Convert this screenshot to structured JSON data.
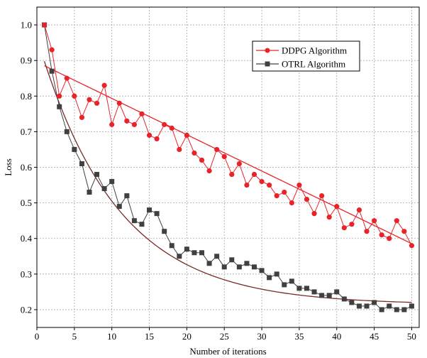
{
  "chart_data": {
    "type": "line",
    "xlabel": "Number of iterations",
    "ylabel": "Loss",
    "xlim": [
      0,
      51
    ],
    "ylim": [
      0.15,
      1.05
    ],
    "xticks": [
      0,
      5,
      10,
      15,
      20,
      25,
      30,
      35,
      40,
      45,
      50
    ],
    "yticks": [
      0.2,
      0.3,
      0.4,
      0.5,
      0.6,
      0.7,
      0.8,
      0.9,
      1.0
    ],
    "ytick_labels": [
      "0.2",
      "0.3",
      "0.4",
      "0.5",
      "0.6",
      "0.7",
      "0.8",
      "0.9",
      "1.0"
    ],
    "grid": true,
    "legend_position": "top-right",
    "x": [
      1,
      2,
      3,
      4,
      5,
      6,
      7,
      8,
      9,
      10,
      11,
      12,
      13,
      14,
      15,
      16,
      17,
      18,
      19,
      20,
      21,
      22,
      23,
      24,
      25,
      26,
      27,
      28,
      29,
      30,
      31,
      32,
      33,
      34,
      35,
      36,
      37,
      38,
      39,
      40,
      41,
      42,
      43,
      44,
      45,
      46,
      47,
      48,
      49,
      50
    ],
    "series": [
      {
        "name": "DDPG Algorithm",
        "color": "#e8242a",
        "marker": "circle",
        "values": [
          1.0,
          0.93,
          0.8,
          0.85,
          0.8,
          0.74,
          0.79,
          0.78,
          0.83,
          0.72,
          0.78,
          0.73,
          0.72,
          0.75,
          0.69,
          0.68,
          0.72,
          0.71,
          0.65,
          0.69,
          0.64,
          0.62,
          0.59,
          0.65,
          0.63,
          0.58,
          0.61,
          0.55,
          0.58,
          0.56,
          0.55,
          0.52,
          0.53,
          0.5,
          0.55,
          0.51,
          0.47,
          0.52,
          0.46,
          0.49,
          0.43,
          0.44,
          0.48,
          0.42,
          0.45,
          0.41,
          0.4,
          0.45,
          0.42,
          0.38
        ],
        "fit": {
          "type": "linear",
          "intercept": 0.8955,
          "slope": -0.0102,
          "x_range": [
            1,
            50
          ]
        }
      },
      {
        "name": "OTRL Algorithm",
        "color": "#404040",
        "marker": "square",
        "values": [
          1.0,
          0.87,
          0.77,
          0.7,
          0.65,
          0.61,
          0.53,
          0.58,
          0.54,
          0.56,
          0.49,
          0.52,
          0.45,
          0.44,
          0.48,
          0.47,
          0.42,
          0.38,
          0.35,
          0.37,
          0.36,
          0.36,
          0.33,
          0.35,
          0.32,
          0.34,
          0.32,
          0.33,
          0.32,
          0.31,
          0.29,
          0.3,
          0.27,
          0.28,
          0.26,
          0.26,
          0.25,
          0.24,
          0.24,
          0.25,
          0.23,
          0.22,
          0.21,
          0.21,
          0.22,
          0.2,
          0.21,
          0.2,
          0.2,
          0.21
        ],
        "fit": {
          "type": "exponential",
          "color": "#7a2a2a",
          "asymptote": 0.214,
          "amplitude": 0.752,
          "rate": 0.095,
          "x_range": [
            1,
            50
          ]
        }
      }
    ]
  }
}
